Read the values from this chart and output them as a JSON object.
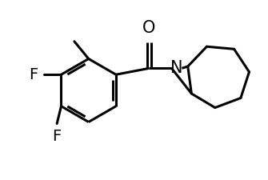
{
  "background_color": "#ffffff",
  "line_color": "#000000",
  "line_width": 2.2,
  "font_size_labels": 14,
  "label_O": "O",
  "label_N": "N",
  "label_F1": "F",
  "label_F2": "F"
}
